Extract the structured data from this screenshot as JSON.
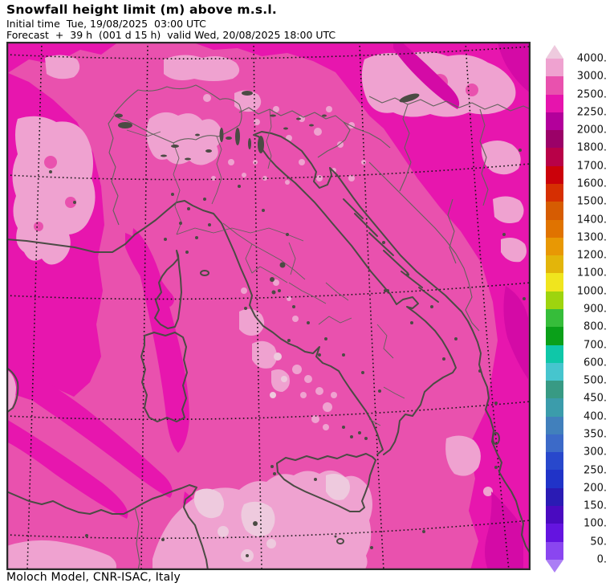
{
  "header": {
    "title": "Snowfall height limit (m) above m.s.l.",
    "initial_time_line": "Initial time  Tue, 19/08/2025  03:00 UTC",
    "forecast_line": "Forecast  +  39 h  (001 d 15 h)  valid Wed, 20/08/2025 18:00 UTC"
  },
  "footer": {
    "credit": "Moloch Model, CNR-ISAC, Italy"
  },
  "legend": {
    "unit_labels": [
      "4000.",
      "3000.",
      "2500.",
      "2250.",
      "2000.",
      "1800.",
      "1700.",
      "1600.",
      "1500.",
      "1400.",
      "1300.",
      "1200.",
      "1100.",
      "1000.",
      "900.",
      "800.",
      "700.",
      "600.",
      "500.",
      "450.",
      "400.",
      "350.",
      "300.",
      "250.",
      "200.",
      "150.",
      "100.",
      "50.",
      "0."
    ],
    "segment_colors": [
      "#efa2d0",
      "#e951ae",
      "#e614ad",
      "#b3009b",
      "#9b0168",
      "#b80148",
      "#cb010a",
      "#d62f02",
      "#d65c02",
      "#e07300",
      "#e89804",
      "#e3b50a",
      "#f0e51e",
      "#9ed40e",
      "#36bd3a",
      "#0aa019",
      "#0fc7a8",
      "#46c5ce",
      "#389a84",
      "#3b9cab",
      "#4180bc",
      "#3c6ac8",
      "#2848cc",
      "#2033c8",
      "#2a1bb4",
      "#4a0ac0",
      "#6414e0",
      "#8a46f0"
    ],
    "above_max_color": "#eecade",
    "below_min_color": "#ab7ef5"
  },
  "map": {
    "palette": {
      "bg": "#e951ae",
      "light": "#efa2d0",
      "pale": "#eecade",
      "hot": "#e716ae",
      "core": "#d40aa6"
    },
    "colors": {
      "coast": "#4b4b44",
      "border": "#62625c",
      "graticule": "#141414",
      "frame": "#2b2b2b"
    }
  }
}
